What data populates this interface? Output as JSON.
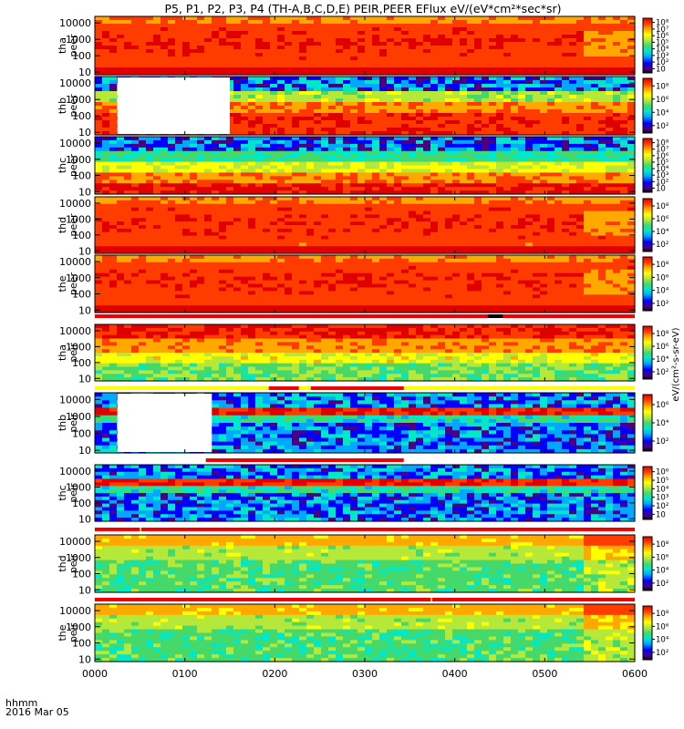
{
  "chart_data": {
    "type": "heatmap",
    "title": "P5, P1, P2, P3, P4 (TH-A,B,C,D,E) PEIR,PEER EFlux eV/(eV*cm²*sec*sr)",
    "x_axis": {
      "tick_labels": [
        "0000",
        "0100",
        "0200",
        "0300",
        "0400",
        "0500",
        "0600"
      ],
      "range_minutes": [
        0,
        360
      ],
      "label_line1": "hhmm",
      "label_line2": "2016 Mar 05"
    },
    "y_axis": {
      "scale": "log",
      "range_eV": [
        7,
        25000
      ],
      "tick_labels": [
        "10",
        "100",
        "1000",
        "10000"
      ]
    },
    "colorbar_label": "eV/(cm²-s-sr-eV)",
    "colors": {
      "palette": [
        "#000000",
        "#4b0082",
        "#0000ff",
        "#00a8ff",
        "#00e8c8",
        "#44d96a",
        "#b6e83a",
        "#ffff00",
        "#ffa800",
        "#ff3c00",
        "#e10000"
      ],
      "flag_red": "#f00000",
      "flag_yellow": "#ffff00"
    },
    "panels": [
      {
        "id": "tha-peer",
        "label1": "tha",
        "label2": "peer",
        "cb_ticks": [
          "10",
          "10²",
          "10³",
          "10⁴",
          "10⁵",
          "10⁶",
          "10⁷",
          "10⁸"
        ],
        "dropout_minutes": [],
        "base_eV": 25,
        "profile": "electron-hot"
      },
      {
        "id": "thb-peer",
        "label1": "thb",
        "label2": "peer",
        "cb_ticks": [
          "10²",
          "10⁴",
          "10⁶",
          "10⁸"
        ],
        "dropout_minutes": [
          [
            15,
            90
          ]
        ],
        "base_eV": 25,
        "profile": "electron-bands"
      },
      {
        "id": "thc-peer",
        "label1": "thc",
        "label2": "peer",
        "cb_ticks": [
          "10",
          "10²",
          "10³",
          "10⁴",
          "10⁵",
          "10⁶",
          "10⁷",
          "10⁸"
        ],
        "dropout_minutes": [],
        "base_eV": 25,
        "profile": "electron-cool"
      },
      {
        "id": "thd-peer",
        "label1": "thd",
        "label2": "peer",
        "cb_ticks": [
          "10²",
          "10⁴",
          "10⁶",
          "10⁸"
        ],
        "dropout_minutes": [],
        "base_eV": 25,
        "profile": "electron-hot"
      },
      {
        "id": "the-peer",
        "label1": "the",
        "label2": "peer",
        "cb_ticks": [
          "10²",
          "10⁴",
          "10⁶",
          "10⁸"
        ],
        "dropout_minutes": [],
        "base_eV": 25,
        "profile": "electron-hot"
      },
      {
        "id": "tha-peir",
        "label1": "tha",
        "label2": "peir",
        "cb_ticks": [
          "10²",
          "10⁴",
          "10⁶",
          "10⁸"
        ],
        "dropout_minutes": [],
        "base_eV": 10,
        "profile": "ion-hot"
      },
      {
        "id": "thb-peir",
        "label1": "thb",
        "label2": "peir",
        "cb_ticks": [
          "10²",
          "10⁴",
          "10⁶"
        ],
        "dropout_minutes": [
          [
            15,
            78
          ]
        ],
        "base_eV": 10,
        "profile": "ion-band"
      },
      {
        "id": "thc-peir",
        "label1": "thc",
        "label2": "peir",
        "cb_ticks": [
          "10",
          "10²",
          "10³",
          "10⁴",
          "10⁵",
          "10⁶"
        ],
        "dropout_minutes": [],
        "base_eV": 10,
        "profile": "ion-band"
      },
      {
        "id": "thd-peir",
        "label1": "thd",
        "label2": "peir",
        "cb_ticks": [
          "10²",
          "10⁴",
          "10⁶",
          "10⁸"
        ],
        "dropout_minutes": [],
        "base_eV": 10,
        "profile": "ion-warm"
      },
      {
        "id": "the-peir",
        "label1": "the",
        "label2": "peir",
        "cb_ticks": [
          "10²",
          "10⁴",
          "10⁶",
          "10⁸"
        ],
        "dropout_minutes": [],
        "base_eV": 10,
        "profile": "ion-warm"
      }
    ],
    "flag_bars": [
      {
        "between": "the-peer/tha-peir",
        "segments": [
          [
            0,
            360,
            "red"
          ],
          [
            262,
            272,
            "black"
          ]
        ]
      },
      {
        "between": "tha-peir/thb-peir",
        "segments": [
          [
            0,
            360,
            "yellow"
          ],
          [
            116,
            136,
            "red"
          ],
          [
            144,
            206,
            "red"
          ]
        ]
      },
      {
        "between": "thb-peir/thc-peir",
        "segments": [
          [
            74,
            206,
            "red"
          ]
        ]
      },
      {
        "between": "thc-peir/thd-peir",
        "segments": [
          [
            0,
            360,
            "red"
          ],
          [
            30,
            31,
            "yellow"
          ]
        ]
      },
      {
        "between": "thd-peir/the-peir",
        "segments": [
          [
            0,
            360,
            "red"
          ],
          [
            224,
            225,
            "yellow"
          ]
        ]
      }
    ]
  }
}
